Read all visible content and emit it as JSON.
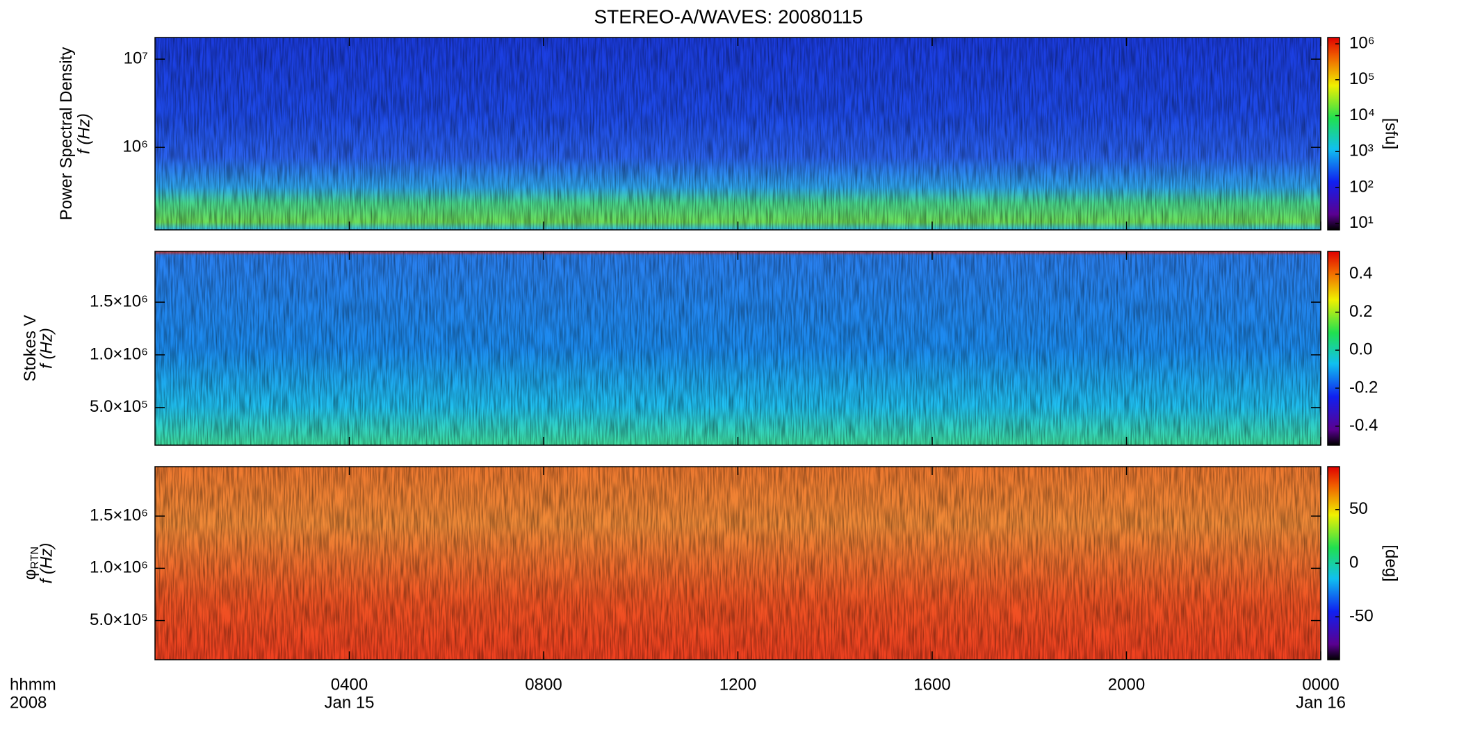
{
  "title": "STEREO-A/WAVES: 20080115",
  "x_axis": {
    "xlim": [
      0,
      24
    ],
    "xticks": [
      {
        "value": 4,
        "label": "0400"
      },
      {
        "value": 8,
        "label": "0800"
      },
      {
        "value": 12,
        "label": "1200"
      },
      {
        "value": 16,
        "label": "1600"
      },
      {
        "value": 20,
        "label": "2000"
      },
      {
        "value": 24,
        "label": "0000"
      }
    ],
    "row_labels": [
      "hhmm",
      "2008"
    ],
    "dates": [
      {
        "value": 4,
        "label": "Jan 15"
      },
      {
        "value": 24,
        "label": "Jan 16"
      }
    ]
  },
  "chart_data": [
    {
      "type": "heatmap",
      "ylabel": "Power Spectral Density",
      "ylabel2": "f (Hz)",
      "log_y": true,
      "ylim": [
        116000,
        17600000
      ],
      "yticks": [
        {
          "value": 1000000,
          "label": "10⁶"
        },
        {
          "value": 10000000,
          "label": "10⁷"
        }
      ],
      "colorbar": {
        "label": "[sfu]",
        "log": true,
        "clim": [
          6.6,
          1500000
        ],
        "ticks": [
          {
            "value": 10,
            "label": "10¹"
          },
          {
            "value": 100,
            "label": "10²"
          },
          {
            "value": 1000,
            "label": "10³"
          },
          {
            "value": 10000,
            "label": "10⁴"
          },
          {
            "value": 100000,
            "label": "10⁵"
          },
          {
            "value": 1000000,
            "label": "10⁶"
          }
        ]
      }
    },
    {
      "type": "heatmap",
      "ylabel": "Stokes V",
      "ylabel2": "f (Hz)",
      "log_y": false,
      "ylim": [
        143000,
        1982000
      ],
      "yticks": [
        {
          "value": 500000,
          "label": "5.0×10⁵"
        },
        {
          "value": 1000000,
          "label": "1.0×10⁶"
        },
        {
          "value": 1500000,
          "label": "1.5×10⁶"
        }
      ],
      "colorbar": {
        "log": false,
        "clim": [
          -0.5,
          0.52
        ],
        "ticks": [
          -0.4,
          -0.2,
          {
            "value": 0,
            "label": "0.0"
          },
          0.2,
          0.4
        ]
      }
    },
    {
      "type": "heatmap",
      "ylabel": "φ",
      "ylabel_subscript": "RTN",
      "ylabel2": "f (Hz)",
      "log_y": false,
      "ylim": [
        125000,
        1973000
      ],
      "yticks": [
        {
          "value": 500000,
          "label": "5.0×10⁵"
        },
        {
          "value": 1000000,
          "label": "1.0×10⁶"
        },
        {
          "value": 1500000,
          "label": "1.5×10⁶"
        }
      ],
      "colorbar": {
        "label": "[deg]",
        "log": false,
        "clim": [
          -90,
          90
        ],
        "ticks": [
          -50,
          0,
          50
        ]
      }
    }
  ]
}
